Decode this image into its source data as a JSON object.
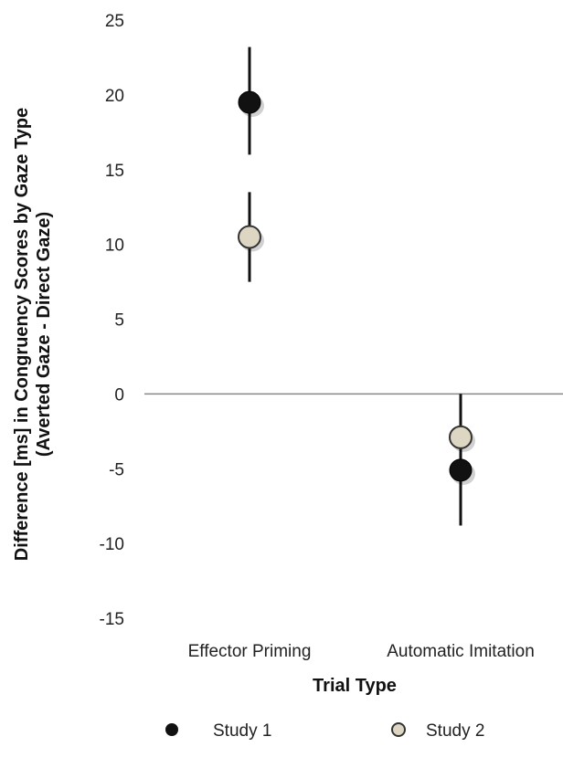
{
  "chart_data": {
    "type": "scatter",
    "title": "",
    "xlabel": "Trial Type",
    "ylabel_lines": [
      "Difference [ms] in Congruency Scores by Gaze Type",
      "(Averted Gaze - Direct Gaze)"
    ],
    "categories": [
      "Effector Priming",
      "Automatic Imitation"
    ],
    "ylim": [
      -15,
      25
    ],
    "yticks": [
      25,
      20,
      15,
      10,
      5,
      0,
      -5,
      -10,
      -15
    ],
    "ytick_labels": [
      "25",
      "20",
      "15",
      "10",
      "5",
      "0",
      "-5",
      "-10",
      "-15"
    ],
    "grid": false,
    "legend_position": "bottom",
    "series": [
      {
        "name": "Study 1",
        "color": "#111111",
        "values": [
          19.5,
          -5.1
        ],
        "error_low": [
          16.0,
          -8.8
        ],
        "error_high": [
          23.2,
          0.0
        ]
      },
      {
        "name": "Study 2",
        "color": "#ddd6c2",
        "values": [
          10.5,
          -2.9
        ],
        "error_low": [
          7.5,
          -6.0
        ],
        "error_high": [
          13.5,
          0.0
        ]
      }
    ]
  }
}
